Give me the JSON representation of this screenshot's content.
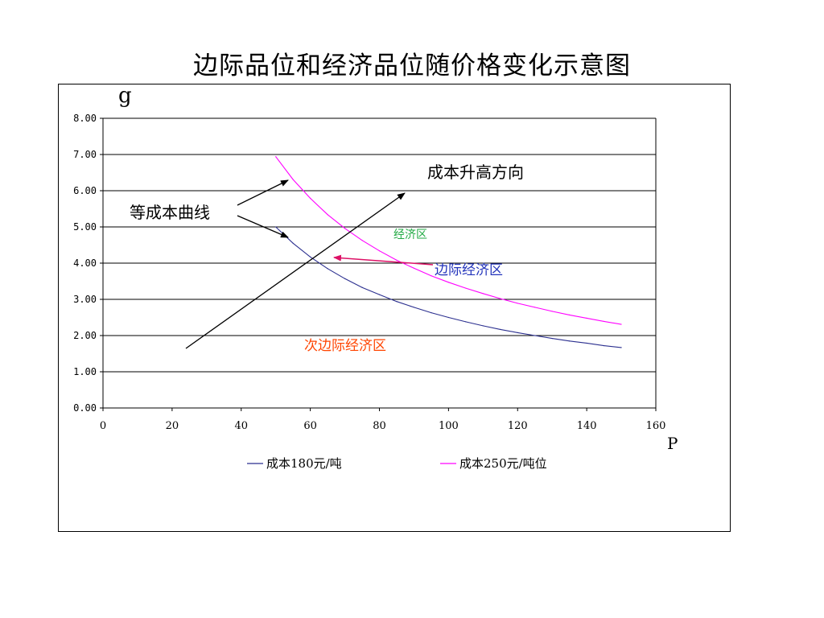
{
  "title": "边际品位和经济品位随价格变化示意图",
  "chart_data": {
    "type": "line",
    "title": "边际品位和经济品位随价格变化示意图",
    "xlabel": "P",
    "ylabel": "g",
    "xlim": [
      0,
      160
    ],
    "ylim": [
      0,
      8
    ],
    "x_ticks": [
      "0",
      "20",
      "40",
      "60",
      "80",
      "100",
      "120",
      "140",
      "160"
    ],
    "y_ticks": [
      "0.00",
      "1.00",
      "2.00",
      "3.00",
      "4.00",
      "5.00",
      "6.00",
      "7.00",
      "8.00"
    ],
    "grid": "horizontal",
    "legend_position": "bottom",
    "series": [
      {
        "name": "成本180元/吨",
        "color": "#2b2f8f",
        "x": [
          50,
          55,
          60,
          65,
          70,
          75,
          80,
          85,
          90,
          95,
          100,
          105,
          110,
          115,
          120,
          125,
          130,
          135,
          140,
          145,
          150
        ],
        "y": [
          5.0,
          4.55,
          4.17,
          3.85,
          3.57,
          3.33,
          3.13,
          2.94,
          2.78,
          2.63,
          2.5,
          2.38,
          2.27,
          2.17,
          2.08,
          2.0,
          1.92,
          1.85,
          1.79,
          1.72,
          1.67
        ]
      },
      {
        "name": "成本250元/吨位",
        "color": "#ff00ff",
        "x": [
          50,
          55,
          60,
          65,
          70,
          75,
          80,
          85,
          90,
          95,
          100,
          105,
          110,
          115,
          120,
          125,
          130,
          135,
          140,
          145,
          150
        ],
        "y": [
          6.94,
          6.31,
          5.79,
          5.34,
          4.96,
          4.63,
          4.34,
          4.08,
          3.86,
          3.65,
          3.47,
          3.31,
          3.16,
          3.02,
          2.89,
          2.78,
          2.67,
          2.57,
          2.48,
          2.39,
          2.31
        ]
      }
    ],
    "annotations": {
      "iso_cost_label": "等成本曲线",
      "cost_direction_label": "成本升高方向",
      "economic_zone_label": "经济区",
      "marginal_zone_label": "边际经济区",
      "sub_marginal_zone_label": "次边际经济区",
      "economic_zone_color": "#22aa44",
      "marginal_zone_color": "#2233bb",
      "sub_marginal_zone_color": "#ff4400",
      "pointer_color": "#dd1166"
    }
  }
}
